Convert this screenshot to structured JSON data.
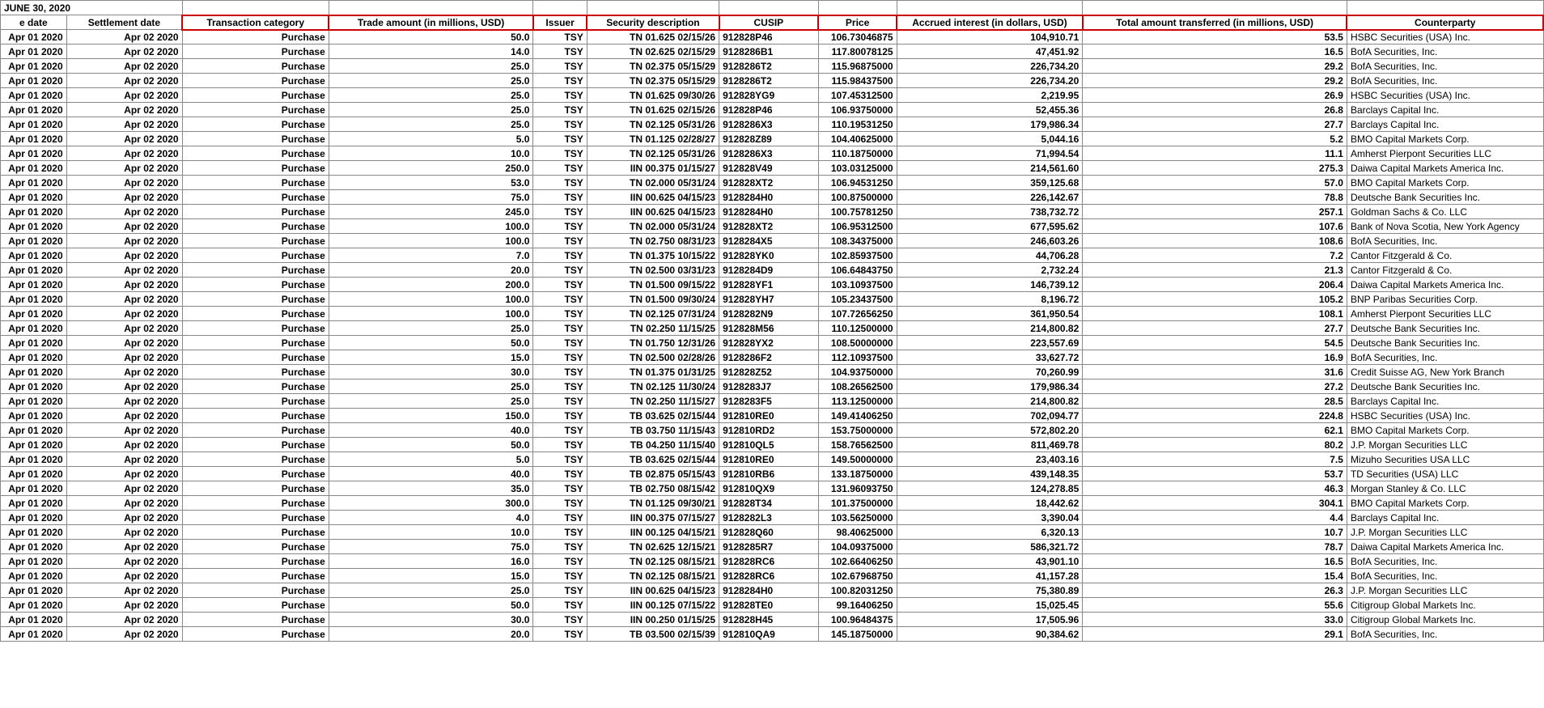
{
  "title": "JUNE 30, 2020",
  "columns": [
    {
      "key": "trade_date",
      "label": "e date",
      "align": "r",
      "cls": "c0"
    },
    {
      "key": "settlement_date",
      "label": "Settlement date",
      "align": "r",
      "cls": "c1"
    },
    {
      "key": "category",
      "label": "Transaction category",
      "align": "r",
      "cls": "c2"
    },
    {
      "key": "trade_amount",
      "label": "Trade amount (in millions, USD)",
      "align": "r",
      "cls": "c3"
    },
    {
      "key": "issuer",
      "label": "Issuer",
      "align": "r",
      "cls": "c4"
    },
    {
      "key": "security",
      "label": "Security description",
      "align": "r",
      "cls": "c5"
    },
    {
      "key": "cusip",
      "label": "CUSIP",
      "align": "l",
      "cls": "c6"
    },
    {
      "key": "price",
      "label": "Price",
      "align": "r",
      "cls": "c7"
    },
    {
      "key": "accrued",
      "label": "Accrued interest (in dollars, USD)",
      "align": "r",
      "cls": "c8"
    },
    {
      "key": "total",
      "label": "Total amount transferred (in millions, USD)",
      "align": "r",
      "cls": "c9"
    },
    {
      "key": "counterparty",
      "label": "Counterparty",
      "align": "l",
      "cls": "c10"
    }
  ],
  "rows": [
    {
      "trade_date": "Apr 01 2020",
      "settlement_date": "Apr 02 2020",
      "category": "Purchase",
      "trade_amount": "50.0",
      "issuer": "TSY",
      "security": "TN 01.625 02/15/26",
      "cusip": "912828P46",
      "price": "106.73046875",
      "accrued": "104,910.71",
      "total": "53.5",
      "counterparty": "HSBC Securities (USA) Inc."
    },
    {
      "trade_date": "Apr 01 2020",
      "settlement_date": "Apr 02 2020",
      "category": "Purchase",
      "trade_amount": "14.0",
      "issuer": "TSY",
      "security": "TN 02.625 02/15/29",
      "cusip": "9128286B1",
      "price": "117.80078125",
      "accrued": "47,451.92",
      "total": "16.5",
      "counterparty": "BofA Securities, Inc."
    },
    {
      "trade_date": "Apr 01 2020",
      "settlement_date": "Apr 02 2020",
      "category": "Purchase",
      "trade_amount": "25.0",
      "issuer": "TSY",
      "security": "TN 02.375 05/15/29",
      "cusip": "9128286T2",
      "price": "115.96875000",
      "accrued": "226,734.20",
      "total": "29.2",
      "counterparty": "BofA Securities, Inc."
    },
    {
      "trade_date": "Apr 01 2020",
      "settlement_date": "Apr 02 2020",
      "category": "Purchase",
      "trade_amount": "25.0",
      "issuer": "TSY",
      "security": "TN 02.375 05/15/29",
      "cusip": "9128286T2",
      "price": "115.98437500",
      "accrued": "226,734.20",
      "total": "29.2",
      "counterparty": "BofA Securities, Inc."
    },
    {
      "trade_date": "Apr 01 2020",
      "settlement_date": "Apr 02 2020",
      "category": "Purchase",
      "trade_amount": "25.0",
      "issuer": "TSY",
      "security": "TN 01.625 09/30/26",
      "cusip": "912828YG9",
      "price": "107.45312500",
      "accrued": "2,219.95",
      "total": "26.9",
      "counterparty": "HSBC Securities (USA) Inc."
    },
    {
      "trade_date": "Apr 01 2020",
      "settlement_date": "Apr 02 2020",
      "category": "Purchase",
      "trade_amount": "25.0",
      "issuer": "TSY",
      "security": "TN 01.625 02/15/26",
      "cusip": "912828P46",
      "price": "106.93750000",
      "accrued": "52,455.36",
      "total": "26.8",
      "counterparty": "Barclays Capital Inc."
    },
    {
      "trade_date": "Apr 01 2020",
      "settlement_date": "Apr 02 2020",
      "category": "Purchase",
      "trade_amount": "25.0",
      "issuer": "TSY",
      "security": "TN 02.125 05/31/26",
      "cusip": "9128286X3",
      "price": "110.19531250",
      "accrued": "179,986.34",
      "total": "27.7",
      "counterparty": "Barclays Capital Inc."
    },
    {
      "trade_date": "Apr 01 2020",
      "settlement_date": "Apr 02 2020",
      "category": "Purchase",
      "trade_amount": "5.0",
      "issuer": "TSY",
      "security": "TN 01.125 02/28/27",
      "cusip": "912828Z89",
      "price": "104.40625000",
      "accrued": "5,044.16",
      "total": "5.2",
      "counterparty": "BMO Capital Markets Corp."
    },
    {
      "trade_date": "Apr 01 2020",
      "settlement_date": "Apr 02 2020",
      "category": "Purchase",
      "trade_amount": "10.0",
      "issuer": "TSY",
      "security": "TN 02.125 05/31/26",
      "cusip": "9128286X3",
      "price": "110.18750000",
      "accrued": "71,994.54",
      "total": "11.1",
      "counterparty": "Amherst Pierpont Securities LLC"
    },
    {
      "trade_date": "Apr 01 2020",
      "settlement_date": "Apr 02 2020",
      "category": "Purchase",
      "trade_amount": "250.0",
      "issuer": "TSY",
      "security": "IIN 00.375 01/15/27",
      "cusip": "912828V49",
      "price": "103.03125000",
      "accrued": "214,561.60",
      "total": "275.3",
      "counterparty": "Daiwa Capital Markets America Inc."
    },
    {
      "trade_date": "Apr 01 2020",
      "settlement_date": "Apr 02 2020",
      "category": "Purchase",
      "trade_amount": "53.0",
      "issuer": "TSY",
      "security": "TN 02.000 05/31/24",
      "cusip": "912828XT2",
      "price": "106.94531250",
      "accrued": "359,125.68",
      "total": "57.0",
      "counterparty": "BMO Capital Markets Corp."
    },
    {
      "trade_date": "Apr 01 2020",
      "settlement_date": "Apr 02 2020",
      "category": "Purchase",
      "trade_amount": "75.0",
      "issuer": "TSY",
      "security": "IIN 00.625 04/15/23",
      "cusip": "9128284H0",
      "price": "100.87500000",
      "accrued": "226,142.67",
      "total": "78.8",
      "counterparty": "Deutsche Bank Securities Inc."
    },
    {
      "trade_date": "Apr 01 2020",
      "settlement_date": "Apr 02 2020",
      "category": "Purchase",
      "trade_amount": "245.0",
      "issuer": "TSY",
      "security": "IIN 00.625 04/15/23",
      "cusip": "9128284H0",
      "price": "100.75781250",
      "accrued": "738,732.72",
      "total": "257.1",
      "counterparty": "Goldman Sachs & Co. LLC"
    },
    {
      "trade_date": "Apr 01 2020",
      "settlement_date": "Apr 02 2020",
      "category": "Purchase",
      "trade_amount": "100.0",
      "issuer": "TSY",
      "security": "TN 02.000 05/31/24",
      "cusip": "912828XT2",
      "price": "106.95312500",
      "accrued": "677,595.62",
      "total": "107.6",
      "counterparty": "Bank of Nova Scotia, New York Agency"
    },
    {
      "trade_date": "Apr 01 2020",
      "settlement_date": "Apr 02 2020",
      "category": "Purchase",
      "trade_amount": "100.0",
      "issuer": "TSY",
      "security": "TN 02.750 08/31/23",
      "cusip": "9128284X5",
      "price": "108.34375000",
      "accrued": "246,603.26",
      "total": "108.6",
      "counterparty": "BofA Securities, Inc."
    },
    {
      "trade_date": "Apr 01 2020",
      "settlement_date": "Apr 02 2020",
      "category": "Purchase",
      "trade_amount": "7.0",
      "issuer": "TSY",
      "security": "TN 01.375 10/15/22",
      "cusip": "912828YK0",
      "price": "102.85937500",
      "accrued": "44,706.28",
      "total": "7.2",
      "counterparty": "Cantor Fitzgerald & Co."
    },
    {
      "trade_date": "Apr 01 2020",
      "settlement_date": "Apr 02 2020",
      "category": "Purchase",
      "trade_amount": "20.0",
      "issuer": "TSY",
      "security": "TN 02.500 03/31/23",
      "cusip": "9128284D9",
      "price": "106.64843750",
      "accrued": "2,732.24",
      "total": "21.3",
      "counterparty": "Cantor Fitzgerald & Co."
    },
    {
      "trade_date": "Apr 01 2020",
      "settlement_date": "Apr 02 2020",
      "category": "Purchase",
      "trade_amount": "200.0",
      "issuer": "TSY",
      "security": "TN 01.500 09/15/22",
      "cusip": "912828YF1",
      "price": "103.10937500",
      "accrued": "146,739.12",
      "total": "206.4",
      "counterparty": "Daiwa Capital Markets America Inc."
    },
    {
      "trade_date": "Apr 01 2020",
      "settlement_date": "Apr 02 2020",
      "category": "Purchase",
      "trade_amount": "100.0",
      "issuer": "TSY",
      "security": "TN 01.500 09/30/24",
      "cusip": "912828YH7",
      "price": "105.23437500",
      "accrued": "8,196.72",
      "total": "105.2",
      "counterparty": "BNP Paribas Securities Corp."
    },
    {
      "trade_date": "Apr 01 2020",
      "settlement_date": "Apr 02 2020",
      "category": "Purchase",
      "trade_amount": "100.0",
      "issuer": "TSY",
      "security": "TN 02.125 07/31/24",
      "cusip": "9128282N9",
      "price": "107.72656250",
      "accrued": "361,950.54",
      "total": "108.1",
      "counterparty": "Amherst Pierpont Securities LLC"
    },
    {
      "trade_date": "Apr 01 2020",
      "settlement_date": "Apr 02 2020",
      "category": "Purchase",
      "trade_amount": "25.0",
      "issuer": "TSY",
      "security": "TN 02.250 11/15/25",
      "cusip": "912828M56",
      "price": "110.12500000",
      "accrued": "214,800.82",
      "total": "27.7",
      "counterparty": "Deutsche Bank Securities Inc."
    },
    {
      "trade_date": "Apr 01 2020",
      "settlement_date": "Apr 02 2020",
      "category": "Purchase",
      "trade_amount": "50.0",
      "issuer": "TSY",
      "security": "TN 01.750 12/31/26",
      "cusip": "912828YX2",
      "price": "108.50000000",
      "accrued": "223,557.69",
      "total": "54.5",
      "counterparty": "Deutsche Bank Securities Inc."
    },
    {
      "trade_date": "Apr 01 2020",
      "settlement_date": "Apr 02 2020",
      "category": "Purchase",
      "trade_amount": "15.0",
      "issuer": "TSY",
      "security": "TN 02.500 02/28/26",
      "cusip": "9128286F2",
      "price": "112.10937500",
      "accrued": "33,627.72",
      "total": "16.9",
      "counterparty": "BofA Securities, Inc."
    },
    {
      "trade_date": "Apr 01 2020",
      "settlement_date": "Apr 02 2020",
      "category": "Purchase",
      "trade_amount": "30.0",
      "issuer": "TSY",
      "security": "TN 01.375 01/31/25",
      "cusip": "912828Z52",
      "price": "104.93750000",
      "accrued": "70,260.99",
      "total": "31.6",
      "counterparty": "Credit Suisse AG, New York Branch"
    },
    {
      "trade_date": "Apr 01 2020",
      "settlement_date": "Apr 02 2020",
      "category": "Purchase",
      "trade_amount": "25.0",
      "issuer": "TSY",
      "security": "TN 02.125 11/30/24",
      "cusip": "9128283J7",
      "price": "108.26562500",
      "accrued": "179,986.34",
      "total": "27.2",
      "counterparty": "Deutsche Bank Securities Inc."
    },
    {
      "trade_date": "Apr 01 2020",
      "settlement_date": "Apr 02 2020",
      "category": "Purchase",
      "trade_amount": "25.0",
      "issuer": "TSY",
      "security": "TN 02.250 11/15/27",
      "cusip": "9128283F5",
      "price": "113.12500000",
      "accrued": "214,800.82",
      "total": "28.5",
      "counterparty": "Barclays Capital Inc."
    },
    {
      "trade_date": "Apr 01 2020",
      "settlement_date": "Apr 02 2020",
      "category": "Purchase",
      "trade_amount": "150.0",
      "issuer": "TSY",
      "security": "TB 03.625 02/15/44",
      "cusip": "912810RE0",
      "price": "149.41406250",
      "accrued": "702,094.77",
      "total": "224.8",
      "counterparty": "HSBC Securities (USA) Inc."
    },
    {
      "trade_date": "Apr 01 2020",
      "settlement_date": "Apr 02 2020",
      "category": "Purchase",
      "trade_amount": "40.0",
      "issuer": "TSY",
      "security": "TB 03.750 11/15/43",
      "cusip": "912810RD2",
      "price": "153.75000000",
      "accrued": "572,802.20",
      "total": "62.1",
      "counterparty": "BMO Capital Markets Corp."
    },
    {
      "trade_date": "Apr 01 2020",
      "settlement_date": "Apr 02 2020",
      "category": "Purchase",
      "trade_amount": "50.0",
      "issuer": "TSY",
      "security": "TB 04.250 11/15/40",
      "cusip": "912810QL5",
      "price": "158.76562500",
      "accrued": "811,469.78",
      "total": "80.2",
      "counterparty": "J.P. Morgan Securities LLC"
    },
    {
      "trade_date": "Apr 01 2020",
      "settlement_date": "Apr 02 2020",
      "category": "Purchase",
      "trade_amount": "5.0",
      "issuer": "TSY",
      "security": "TB 03.625 02/15/44",
      "cusip": "912810RE0",
      "price": "149.50000000",
      "accrued": "23,403.16",
      "total": "7.5",
      "counterparty": "Mizuho Securities USA LLC"
    },
    {
      "trade_date": "Apr 01 2020",
      "settlement_date": "Apr 02 2020",
      "category": "Purchase",
      "trade_amount": "40.0",
      "issuer": "TSY",
      "security": "TB 02.875 05/15/43",
      "cusip": "912810RB6",
      "price": "133.18750000",
      "accrued": "439,148.35",
      "total": "53.7",
      "counterparty": "TD Securities (USA) LLC"
    },
    {
      "trade_date": "Apr 01 2020",
      "settlement_date": "Apr 02 2020",
      "category": "Purchase",
      "trade_amount": "35.0",
      "issuer": "TSY",
      "security": "TB 02.750 08/15/42",
      "cusip": "912810QX9",
      "price": "131.96093750",
      "accrued": "124,278.85",
      "total": "46.3",
      "counterparty": "Morgan Stanley & Co. LLC"
    },
    {
      "trade_date": "Apr 01 2020",
      "settlement_date": "Apr 02 2020",
      "category": "Purchase",
      "trade_amount": "300.0",
      "issuer": "TSY",
      "security": "TN 01.125 09/30/21",
      "cusip": "912828T34",
      "price": "101.37500000",
      "accrued": "18,442.62",
      "total": "304.1",
      "counterparty": "BMO Capital Markets Corp."
    },
    {
      "trade_date": "Apr 01 2020",
      "settlement_date": "Apr 02 2020",
      "category": "Purchase",
      "trade_amount": "4.0",
      "issuer": "TSY",
      "security": "IIN 00.375 07/15/27",
      "cusip": "9128282L3",
      "price": "103.56250000",
      "accrued": "3,390.04",
      "total": "4.4",
      "counterparty": "Barclays Capital Inc."
    },
    {
      "trade_date": "Apr 01 2020",
      "settlement_date": "Apr 02 2020",
      "category": "Purchase",
      "trade_amount": "10.0",
      "issuer": "TSY",
      "security": "IIN 00.125 04/15/21",
      "cusip": "912828Q60",
      "price": "98.40625000",
      "accrued": "6,320.13",
      "total": "10.7",
      "counterparty": "J.P. Morgan Securities LLC"
    },
    {
      "trade_date": "Apr 01 2020",
      "settlement_date": "Apr 02 2020",
      "category": "Purchase",
      "trade_amount": "75.0",
      "issuer": "TSY",
      "security": "TN 02.625 12/15/21",
      "cusip": "9128285R7",
      "price": "104.09375000",
      "accrued": "586,321.72",
      "total": "78.7",
      "counterparty": "Daiwa Capital Markets America Inc."
    },
    {
      "trade_date": "Apr 01 2020",
      "settlement_date": "Apr 02 2020",
      "category": "Purchase",
      "trade_amount": "16.0",
      "issuer": "TSY",
      "security": "TN 02.125 08/15/21",
      "cusip": "912828RC6",
      "price": "102.66406250",
      "accrued": "43,901.10",
      "total": "16.5",
      "counterparty": "BofA Securities, Inc."
    },
    {
      "trade_date": "Apr 01 2020",
      "settlement_date": "Apr 02 2020",
      "category": "Purchase",
      "trade_amount": "15.0",
      "issuer": "TSY",
      "security": "TN 02.125 08/15/21",
      "cusip": "912828RC6",
      "price": "102.67968750",
      "accrued": "41,157.28",
      "total": "15.4",
      "counterparty": "BofA Securities, Inc."
    },
    {
      "trade_date": "Apr 01 2020",
      "settlement_date": "Apr 02 2020",
      "category": "Purchase",
      "trade_amount": "25.0",
      "issuer": "TSY",
      "security": "IIN 00.625 04/15/23",
      "cusip": "9128284H0",
      "price": "100.82031250",
      "accrued": "75,380.89",
      "total": "26.3",
      "counterparty": "J.P. Morgan Securities LLC"
    },
    {
      "trade_date": "Apr 01 2020",
      "settlement_date": "Apr 02 2020",
      "category": "Purchase",
      "trade_amount": "50.0",
      "issuer": "TSY",
      "security": "IIN 00.125 07/15/22",
      "cusip": "912828TE0",
      "price": "99.16406250",
      "accrued": "15,025.45",
      "total": "55.6",
      "counterparty": "Citigroup Global Markets Inc."
    },
    {
      "trade_date": "Apr 01 2020",
      "settlement_date": "Apr 02 2020",
      "category": "Purchase",
      "trade_amount": "30.0",
      "issuer": "TSY",
      "security": "IIN 00.250 01/15/25",
      "cusip": "912828H45",
      "price": "100.96484375",
      "accrued": "17,505.96",
      "total": "33.0",
      "counterparty": "Citigroup Global Markets Inc."
    },
    {
      "trade_date": "Apr 01 2020",
      "settlement_date": "Apr 02 2020",
      "category": "Purchase",
      "trade_amount": "20.0",
      "issuer": "TSY",
      "security": "TB 03.500 02/15/39",
      "cusip": "912810QA9",
      "price": "145.18750000",
      "accrued": "90,384.62",
      "total": "29.1",
      "counterparty": "BofA Securities, Inc."
    }
  ]
}
